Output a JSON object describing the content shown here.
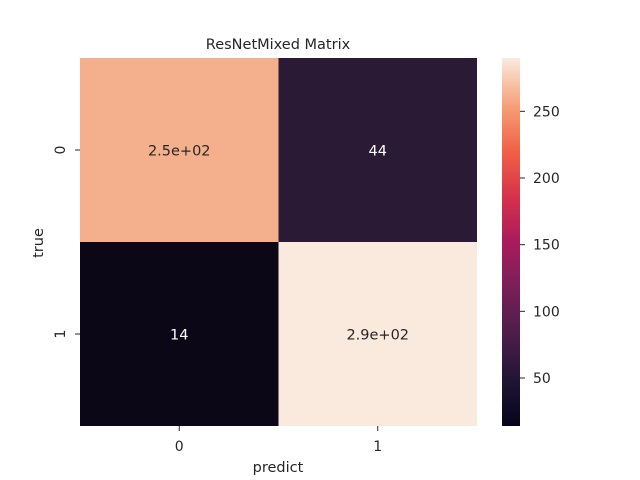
{
  "chart_data": {
    "type": "heatmap",
    "title": "ResNetMixed Matrix",
    "xlabel": "predict",
    "ylabel": "true",
    "x_categories": [
      "0",
      "1"
    ],
    "y_categories": [
      "0",
      "1"
    ],
    "values": [
      [
        250,
        44
      ],
      [
        14,
        290
      ]
    ],
    "annotations": [
      [
        "2.5e+02",
        "44"
      ],
      [
        "14",
        "2.9e+02"
      ]
    ],
    "colorbar": {
      "min": 14,
      "max": 290,
      "ticks": [
        50,
        100,
        150,
        200,
        250
      ],
      "tick_labels": [
        "50",
        "100",
        "150",
        "200",
        "250"
      ],
      "colormap": "rocket"
    },
    "colors": {
      "cell_0_0": "#f4b08c",
      "cell_0_1": "#2a1a36",
      "cell_1_0": "#0b0716",
      "cell_1_1": "#faeadd",
      "dark_text": "#262626",
      "light_text": "#ffffff"
    }
  }
}
